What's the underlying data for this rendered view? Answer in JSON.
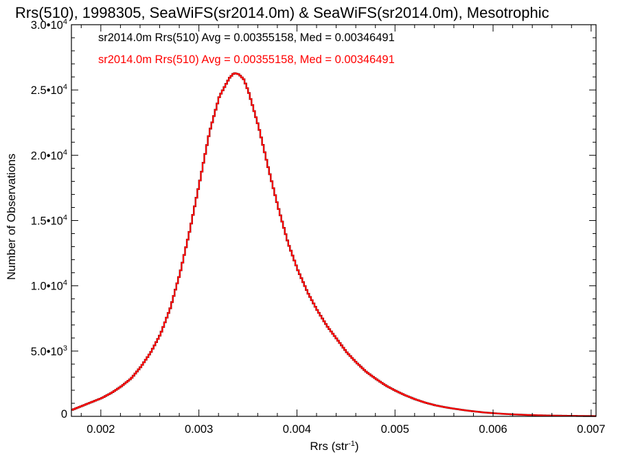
{
  "chart_data": {
    "type": "line",
    "title": "Rrs(510), 1998305, SeaWiFS(sr2014.0m) & SeaWiFS(sr2014.0m), Mesotrophic",
    "xlabel_main": "Rrs (str",
    "xlabel_sup": "-1",
    "xlabel_tail": ")",
    "ylabel": "Number of Observations",
    "xlim": [
      0.0017,
      0.00705
    ],
    "ylim": [
      0,
      30000
    ],
    "x_ticks": [
      {
        "value": 0.002,
        "label": "0.002"
      },
      {
        "value": 0.003,
        "label": "0.003"
      },
      {
        "value": 0.004,
        "label": "0.004"
      },
      {
        "value": 0.005,
        "label": "0.005"
      },
      {
        "value": 0.006,
        "label": "0.006"
      },
      {
        "value": 0.007,
        "label": "0.007"
      }
    ],
    "y_ticks": [
      {
        "value": 0,
        "mant": "0",
        "exp": ""
      },
      {
        "value": 5000,
        "mant": "5.0•10",
        "exp": "3"
      },
      {
        "value": 10000,
        "mant": "1.0•10",
        "exp": "4"
      },
      {
        "value": 15000,
        "mant": "1.5•10",
        "exp": "4"
      },
      {
        "value": 20000,
        "mant": "2.0•10",
        "exp": "4"
      },
      {
        "value": 25000,
        "mant": "2.5•10",
        "exp": "4"
      },
      {
        "value": 30000,
        "mant": "3.0•10",
        "exp": "4"
      }
    ],
    "x": [
      0.0017,
      0.0018,
      0.0019,
      0.002,
      0.0021,
      0.0022,
      0.0023,
      0.0024,
      0.0025,
      0.0026,
      0.0027,
      0.0028,
      0.0029,
      0.003,
      0.0031,
      0.0032,
      0.0033,
      0.00335,
      0.0034,
      0.00345,
      0.0035,
      0.0036,
      0.0037,
      0.0038,
      0.0039,
      0.004,
      0.0041,
      0.0042,
      0.0043,
      0.0044,
      0.0045,
      0.0046,
      0.0047,
      0.0048,
      0.0049,
      0.005,
      0.0051,
      0.0052,
      0.0053,
      0.0054,
      0.0055,
      0.0056,
      0.0057,
      0.0058,
      0.0059,
      0.006,
      0.0061,
      0.0062,
      0.0063,
      0.0064,
      0.0065,
      0.0066,
      0.0067,
      0.0068,
      0.0069,
      0.007,
      0.00705
    ],
    "series": [
      {
        "legend": "sr2014.0m Rrs(510) Avg = 0.00355158, Med = 0.00346491",
        "color": "#000000",
        "values": [
          500,
          800,
          1100,
          1400,
          1800,
          2300,
          2900,
          3800,
          4900,
          6300,
          8300,
          11000,
          14300,
          18000,
          21800,
          24500,
          25900,
          26300,
          26200,
          25800,
          24800,
          22200,
          19000,
          16000,
          13300,
          11200,
          9500,
          8100,
          6900,
          5900,
          4900,
          4100,
          3400,
          2850,
          2350,
          1950,
          1600,
          1300,
          1050,
          850,
          700,
          580,
          470,
          380,
          300,
          240,
          190,
          150,
          120,
          95,
          75,
          60,
          48,
          38,
          30,
          24,
          20
        ]
      },
      {
        "legend": "sr2014.0m Rrs(510) Avg = 0.00355158, Med = 0.00346491",
        "color": "#ff0000",
        "values": [
          500,
          800,
          1100,
          1400,
          1800,
          2300,
          2900,
          3800,
          4900,
          6300,
          8300,
          11000,
          14300,
          18000,
          21800,
          24500,
          25900,
          26300,
          26200,
          25800,
          24800,
          22200,
          19000,
          16000,
          13300,
          11200,
          9500,
          8100,
          6900,
          5900,
          4900,
          4100,
          3400,
          2850,
          2350,
          1950,
          1600,
          1300,
          1050,
          850,
          700,
          580,
          470,
          380,
          300,
          240,
          190,
          150,
          120,
          95,
          75,
          60,
          48,
          38,
          30,
          24,
          20
        ]
      }
    ],
    "grid": false,
    "legend_position": "top-left"
  }
}
